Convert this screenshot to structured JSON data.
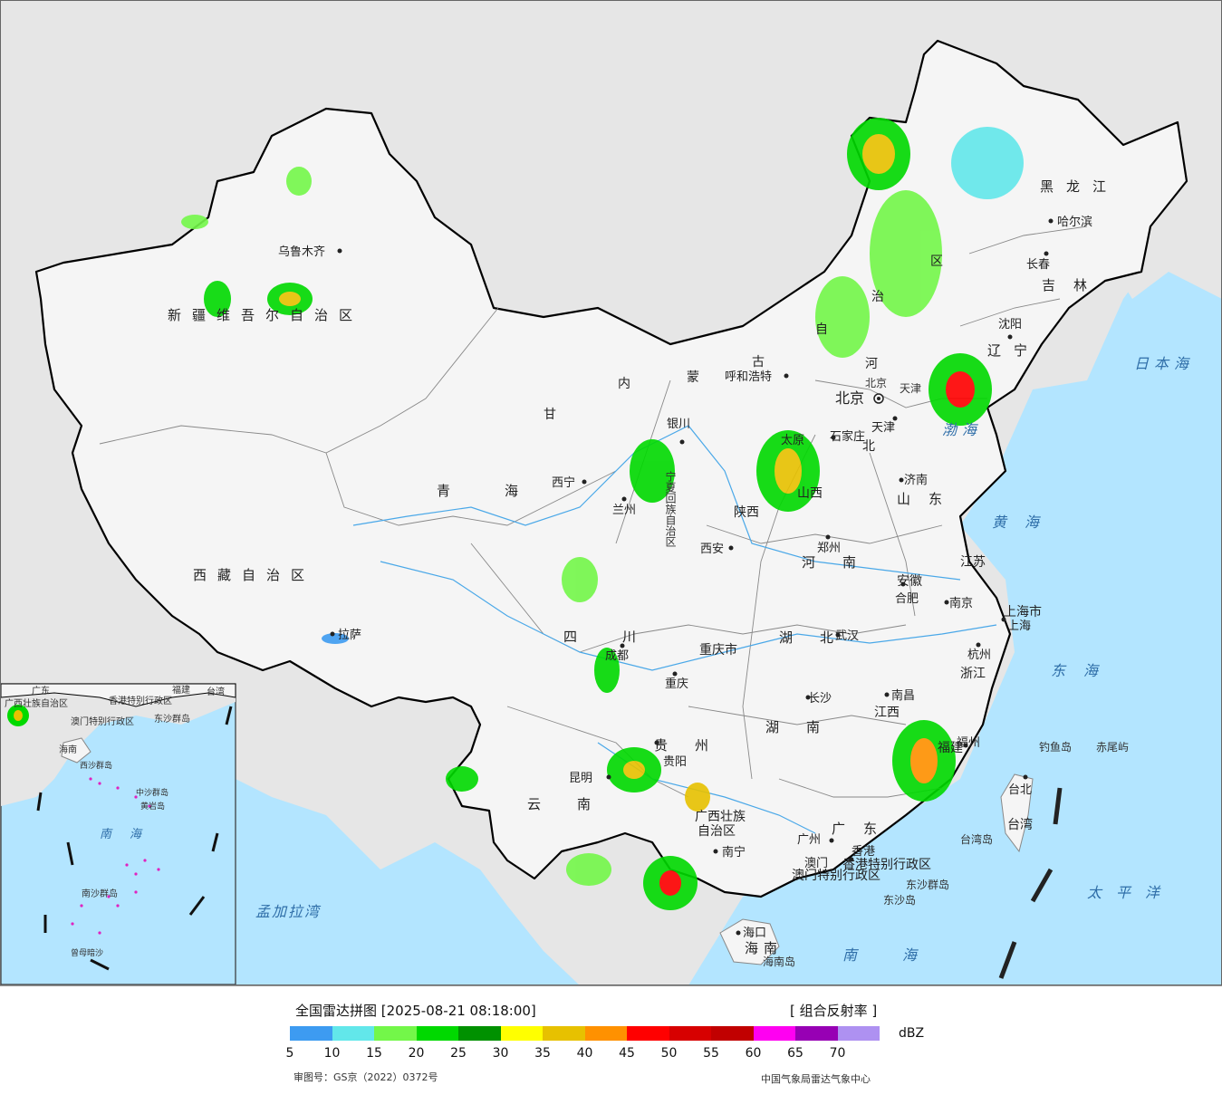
{
  "title": "全国雷达拼图 [2025-08-21 08:18:00]",
  "product": "[ 组合反射率 ]",
  "unit": "dBZ",
  "review_number": "审图号：GS京（2022）0372号",
  "organization": "中国气象局雷达气象中心",
  "legend": {
    "colors": [
      "#3d9bf1",
      "#62e7ea",
      "#73f749",
      "#00d900",
      "#009100",
      "#ffff00",
      "#e7c100",
      "#ff9100",
      "#ff0000",
      "#d70000",
      "#c10000",
      "#ff00f1",
      "#9700b4",
      "#ae91f1"
    ],
    "ticks": [
      "5",
      "10",
      "15",
      "20",
      "25",
      "30",
      "35",
      "40",
      "45",
      "50",
      "55",
      "60",
      "65",
      "70"
    ]
  },
  "provinces": {
    "xinjiang": "新疆维吾尔自治区",
    "xizang": "西藏自治区",
    "qinghai": "青海",
    "gansu": "甘",
    "sichuan": "四川",
    "yunnan": "云南",
    "guizhou": "贵州",
    "guangxi_1": "广西壮族",
    "guangxi_2": "自治区",
    "guangdong": "广东",
    "hunan": "湖南",
    "hubei": "湖北",
    "henan": "河南",
    "shaanxi": "陕西",
    "shanxi": "山西",
    "neimenggu_1": "内",
    "neimenggu_2": "蒙",
    "neimenggu_3": "古",
    "neimenggu_4": "自",
    "neimenggu_5": "治",
    "neimenggu_6": "区",
    "ningxia": "宁夏回族自治区",
    "chongqing": "重庆市",
    "hebei_1": "河",
    "hebei_2": "北",
    "shandong": "山东",
    "jiangsu": "江苏",
    "anhui": "安徽",
    "zhejiang": "浙江",
    "jiangxi": "江西",
    "fujian": "福建",
    "liaoning": "辽宁",
    "jilin": "吉林",
    "heilongjiang": "黑龙江",
    "hainan": "海南",
    "taiwan": "台湾",
    "shanghai": "上海市",
    "tianjin": "天津",
    "beijing": "北京",
    "hongkong": "香港特别行政区",
    "macao": "澳门特别行政区"
  },
  "cities": {
    "urumqi": "乌鲁木齐",
    "lhasa": "拉萨",
    "xining": "西宁",
    "lanzhou": "兰州",
    "yinchuan": "银川",
    "chengdu": "成都",
    "chongqing": "重庆",
    "kunming": "昆明",
    "guiyang": "贵阳",
    "nanning": "南宁",
    "guangzhou": "广州",
    "macao": "澳门",
    "hongkong": "香港",
    "changsha": "长沙",
    "wuhan": "武汉",
    "zhengzhou": "郑州",
    "xian": "西安",
    "taiyuan": "太原",
    "hohhot": "呼和浩特",
    "shijiazhuang": "石家庄",
    "beijing": "北京",
    "tianjin": "天津",
    "jinan": "济南",
    "nanjing": "南京",
    "hefei": "合肥",
    "shanghai": "上海",
    "hangzhou": "杭州",
    "nanchang": "南昌",
    "fuzhou": "福州",
    "taipei": "台北",
    "shenyang": "沈阳",
    "changchun": "长春",
    "harbin": "哈尔滨",
    "haikou": "海口"
  },
  "seas": {
    "bohai": "渤海",
    "yellow": "黄海",
    "east": "东海",
    "south": "南海",
    "pacific": "太平洋",
    "japan": "日本海",
    "bengal": "孟加拉湾"
  },
  "islands": {
    "diaoyu": "钓鱼岛",
    "chiwei": "赤尾屿",
    "taiwan_island": "台湾岛",
    "dongsha_islands": "东沙群岛",
    "dongsha": "东沙岛",
    "hainan_island": "海南岛"
  },
  "inset": {
    "guangdong": "广东",
    "guangxi": "广西壮族自治区",
    "fujian": "福建",
    "taiwan": "台湾",
    "hongkong": "香港特别行政区",
    "macao": "澳门特别行政区",
    "dongsha": "东沙群岛",
    "hainan": "海南",
    "xisha": "西沙群岛",
    "zhongsha": "中沙群岛",
    "huangyan": "黄岩岛",
    "south_sea": "南海",
    "nansha": "南沙群岛",
    "zengmu": "曾母暗沙"
  }
}
